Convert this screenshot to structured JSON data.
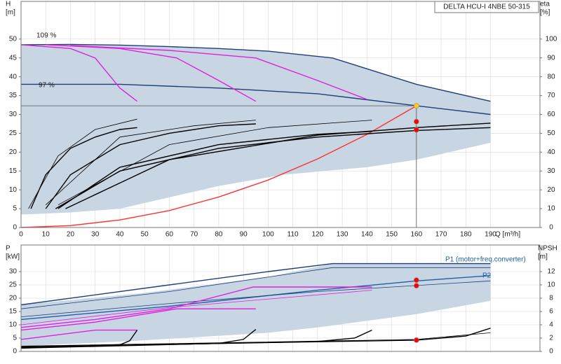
{
  "chart_data": [
    {
      "type": "line",
      "title": "DELTA HCU-I 4NBE 50-315",
      "y_label": "H",
      "y_unit": "[m]",
      "y2_label": "eta",
      "y2_unit": "[%]",
      "x_label": "Q [m³/h]",
      "xlim": [
        0,
        210
      ],
      "xticks": [
        0,
        10,
        20,
        30,
        40,
        50,
        60,
        70,
        80,
        90,
        100,
        110,
        120,
        130,
        140,
        150,
        160,
        170,
        180,
        190
      ],
      "ylim": [
        0,
        60
      ],
      "yticks": [
        0,
        5,
        10,
        15,
        20,
        25,
        30,
        35,
        40,
        45,
        50
      ],
      "y2lim": [
        0,
        120
      ],
      "y2ticks": [
        0,
        10,
        20,
        30,
        40,
        50,
        60,
        70,
        80,
        90,
        100
      ],
      "grid": true,
      "annotations": [
        "109 %",
        "97 %"
      ],
      "series": [
        {
          "kind": "area",
          "color": "#c8d5e3",
          "x": [
            0,
            20,
            40,
            60,
            80,
            100,
            126,
            160,
            190,
            190,
            160,
            140,
            106,
            80,
            60,
            40,
            20,
            2,
            0
          ],
          "values": [
            48.5,
            48.6,
            48.4,
            48,
            47.5,
            46.8,
            45,
            38,
            33.5,
            22.5,
            18,
            16,
            14,
            11,
            8,
            5,
            4,
            3.5,
            3.5
          ]
        },
        {
          "kind": "line",
          "color": "#1f3f7a",
          "x": [
            0,
            20,
            40,
            60,
            80,
            100,
            126,
            160,
            190
          ],
          "values": [
            48.5,
            48.6,
            48.4,
            48,
            47.5,
            46.8,
            45,
            38,
            33.5
          ]
        },
        {
          "kind": "line",
          "color": "#1f3f7a",
          "x": [
            0,
            40,
            80,
            120,
            160,
            190
          ],
          "values": [
            38,
            38,
            37,
            35.5,
            32.3,
            30
          ]
        },
        {
          "kind": "line",
          "color": "#e020e0",
          "x": [
            0,
            20,
            30,
            40,
            47
          ],
          "values": [
            48.5,
            47.5,
            45,
            37,
            33.5
          ]
        },
        {
          "kind": "line",
          "color": "#e020e0",
          "x": [
            10,
            40,
            63,
            80,
            95
          ],
          "values": [
            48.5,
            47.5,
            45,
            39,
            33.5
          ]
        },
        {
          "kind": "line",
          "color": "#e020e0",
          "x": [
            20,
            60,
            95,
            120,
            140
          ],
          "values": [
            48.3,
            47,
            45,
            39,
            34
          ]
        },
        {
          "kind": "line",
          "color": "#ff3030",
          "x": [
            0,
            20,
            40,
            60,
            80,
            100,
            120,
            140,
            160
          ],
          "values": [
            0,
            0.5,
            2,
            4.5,
            8.1,
            12.6,
            18.2,
            24.7,
            32.3
          ]
        },
        {
          "kind": "line",
          "color": "#000000",
          "axis": "y2",
          "x": [
            4,
            10,
            20,
            30,
            40,
            47
          ],
          "values": [
            10,
            28,
            42,
            48,
            52,
            53
          ]
        },
        {
          "kind": "line",
          "color": "#000000",
          "axis": "y2",
          "thin": true,
          "x": [
            3,
            15,
            30,
            47
          ],
          "values": [
            10,
            38,
            52,
            57.5
          ]
        },
        {
          "kind": "line",
          "color": "#000000",
          "axis": "y2",
          "x": [
            10,
            20,
            40,
            60,
            80,
            95
          ],
          "values": [
            10,
            28,
            44,
            50,
            54,
            55
          ]
        },
        {
          "kind": "line",
          "color": "#000000",
          "axis": "y2",
          "thin": true,
          "x": [
            10,
            40,
            70,
            95
          ],
          "values": [
            12,
            48,
            54,
            57
          ]
        },
        {
          "kind": "line",
          "color": "#000000",
          "axis": "y2",
          "x": [
            15,
            40,
            80,
            120,
            142
          ],
          "values": [
            10,
            32,
            44,
            49.5,
            51
          ]
        },
        {
          "kind": "line",
          "color": "#000000",
          "axis": "y2",
          "thin": true,
          "x": [
            15,
            60,
            100,
            142
          ],
          "values": [
            12,
            44,
            53,
            57
          ]
        },
        {
          "kind": "line",
          "color": "#000000",
          "axis": "y2",
          "x": [
            14,
            40,
            80,
            120,
            160,
            190
          ],
          "values": [
            10,
            30,
            42,
            48,
            51.5,
            53
          ]
        },
        {
          "kind": "line",
          "color": "#000000",
          "axis": "y2",
          "x": [
            18,
            60,
            120,
            160,
            190
          ],
          "values": [
            10,
            36,
            49,
            53,
            55.4
          ]
        },
        {
          "kind": "line",
          "color": "#555555",
          "thin": true,
          "x": [
            0,
            160
          ],
          "values": [
            32.3,
            32.3
          ]
        },
        {
          "kind": "line",
          "color": "#555555",
          "thin": true,
          "x": [
            160,
            160
          ],
          "values": [
            32.3,
            0
          ]
        },
        {
          "kind": "points",
          "color": "#ffcc00",
          "x": [
            160
          ],
          "values": [
            32.3
          ]
        },
        {
          "kind": "points",
          "color": "#ff0000",
          "axis": "y2",
          "x": [
            160,
            160
          ],
          "values": [
            56.2,
            51.8
          ]
        }
      ]
    },
    {
      "type": "line",
      "y_label": "P",
      "y_unit": "[kW]",
      "y2_label": "NPSH",
      "y2_unit": "[m]",
      "xlim": [
        0,
        210
      ],
      "xticks": [
        0,
        10,
        20,
        30,
        40,
        50,
        60,
        70,
        80,
        90,
        100,
        110,
        120,
        130,
        140,
        150,
        160,
        170,
        180,
        190
      ],
      "ylim": [
        0,
        40
      ],
      "yticks": [
        0,
        5,
        10,
        15,
        20,
        25,
        30
      ],
      "y2lim": [
        0,
        16
      ],
      "y2ticks": [
        0,
        2,
        4,
        6,
        8,
        10,
        12
      ],
      "grid": true,
      "annotations": [
        "P1 (motor+freq.converter)",
        "P2"
      ],
      "series": [
        {
          "kind": "area",
          "color": "#c8d5e3",
          "x": [
            0,
            50,
            100,
            126,
            190,
            190,
            160,
            120,
            100,
            47,
            0
          ],
          "values": [
            17.5,
            22,
            28,
            33,
            33,
            19,
            14,
            9,
            7,
            4,
            2
          ]
        },
        {
          "kind": "line",
          "color": "#1f3f7a",
          "x": [
            0,
            60,
            100,
            126,
            190
          ],
          "values": [
            17.5,
            25,
            30,
            33,
            33
          ]
        },
        {
          "kind": "line",
          "color": "#1f3f7a",
          "thin": true,
          "x": [
            0,
            60,
            126,
            190
          ],
          "values": [
            16,
            22.5,
            31.5,
            31.5
          ]
        },
        {
          "kind": "line",
          "color": "#1f5fa8",
          "x": [
            0,
            60,
            120,
            160,
            190
          ],
          "values": [
            12,
            17,
            23,
            26.5,
            28.5
          ]
        },
        {
          "kind": "line",
          "color": "#1f3f7a",
          "thin": true,
          "x": [
            0,
            60,
            120,
            190
          ],
          "values": [
            13,
            18,
            22.5,
            26.5
          ]
        },
        {
          "kind": "line",
          "color": "#e020e0",
          "x": [
            0,
            30,
            60,
            94,
            142
          ],
          "values": [
            9,
            12,
            16,
            24.2,
            24.2
          ]
        },
        {
          "kind": "line",
          "color": "#e020e0",
          "thin": true,
          "x": [
            0,
            60,
            142
          ],
          "values": [
            10,
            16.5,
            23
          ]
        },
        {
          "kind": "line",
          "color": "#e020e0",
          "x": [
            0,
            30,
            63,
            95
          ],
          "values": [
            8,
            11,
            16,
            16
          ]
        },
        {
          "kind": "line",
          "color": "#e020e0",
          "x": [
            0,
            30,
            47
          ],
          "values": [
            4.5,
            8,
            8
          ]
        },
        {
          "kind": "line",
          "color": "#000000",
          "axis": "y2",
          "x": [
            0,
            40,
            44,
            47
          ],
          "values": [
            0.5,
            1,
            1.6,
            3.2
          ]
        },
        {
          "kind": "line",
          "color": "#000000",
          "axis": "y2",
          "x": [
            0,
            80,
            90,
            95
          ],
          "values": [
            0.5,
            1.2,
            1.8,
            3.3
          ]
        },
        {
          "kind": "line",
          "color": "#000000",
          "axis": "y2",
          "x": [
            0,
            120,
            135,
            142
          ],
          "values": [
            0.6,
            1.5,
            2,
            3.2
          ]
        },
        {
          "kind": "line",
          "color": "#000000",
          "axis": "y2",
          "x": [
            0,
            160,
            180,
            190
          ],
          "values": [
            0.7,
            1.7,
            2.3,
            3.5
          ]
        },
        {
          "kind": "line",
          "color": "#000000",
          "axis": "y2",
          "thin": true,
          "x": [
            0,
            160,
            190
          ],
          "values": [
            0.8,
            1.8,
            2.8
          ]
        },
        {
          "kind": "points",
          "color": "#ff0000",
          "x": [
            160,
            160
          ],
          "values": [
            26.8,
            24.7
          ]
        },
        {
          "kind": "points",
          "color": "#ff0000",
          "axis": "y2",
          "x": [
            160
          ],
          "values": [
            1.7
          ]
        }
      ]
    }
  ]
}
